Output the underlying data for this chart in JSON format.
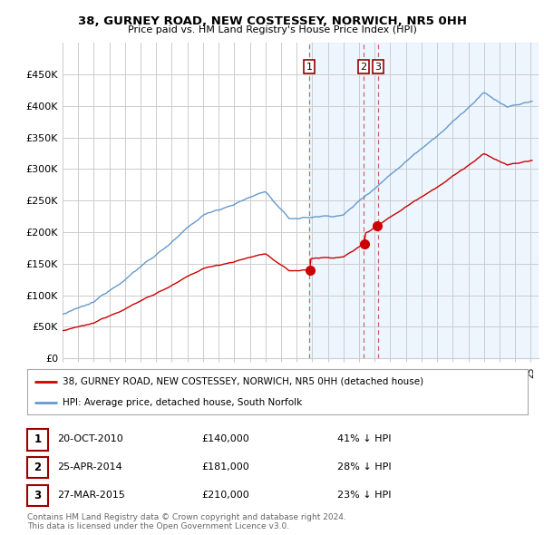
{
  "title": "38, GURNEY ROAD, NEW COSTESSEY, NORWICH, NR5 0HH",
  "subtitle": "Price paid vs. HM Land Registry's House Price Index (HPI)",
  "ylim": [
    0,
    500000
  ],
  "yticks": [
    0,
    50000,
    100000,
    150000,
    200000,
    250000,
    300000,
    350000,
    400000,
    450000
  ],
  "ytick_labels": [
    "£0",
    "£50K",
    "£100K",
    "£150K",
    "£200K",
    "£250K",
    "£300K",
    "£350K",
    "£400K",
    "£450K"
  ],
  "xlim_start": 1995.0,
  "xlim_end": 2025.5,
  "sale_year_floats": [
    2010.792,
    2014.292,
    2015.208
  ],
  "sale_prices": [
    140000,
    181000,
    210000
  ],
  "sale_labels": [
    "1",
    "2",
    "3"
  ],
  "legend_line1": "38, GURNEY ROAD, NEW COSTESSEY, NORWICH, NR5 0HH (detached house)",
  "legend_line2": "HPI: Average price, detached house, South Norfolk",
  "table_rows": [
    {
      "label": "1",
      "date": "20-OCT-2010",
      "price": "£140,000",
      "pct": "41% ↓ HPI"
    },
    {
      "label": "2",
      "date": "25-APR-2014",
      "price": "£181,000",
      "pct": "28% ↓ HPI"
    },
    {
      "label": "3",
      "date": "27-MAR-2015",
      "price": "£210,000",
      "pct": "23% ↓ HPI"
    }
  ],
  "footer1": "Contains HM Land Registry data © Crown copyright and database right 2024.",
  "footer2": "This data is licensed under the Open Government Licence v3.0.",
  "red_color": "#cc0000",
  "blue_color": "#6699cc",
  "blue_fill": "#ddeeff",
  "bg_color": "#ffffff",
  "grid_color": "#cccccc",
  "vline_color": "#cc6666"
}
